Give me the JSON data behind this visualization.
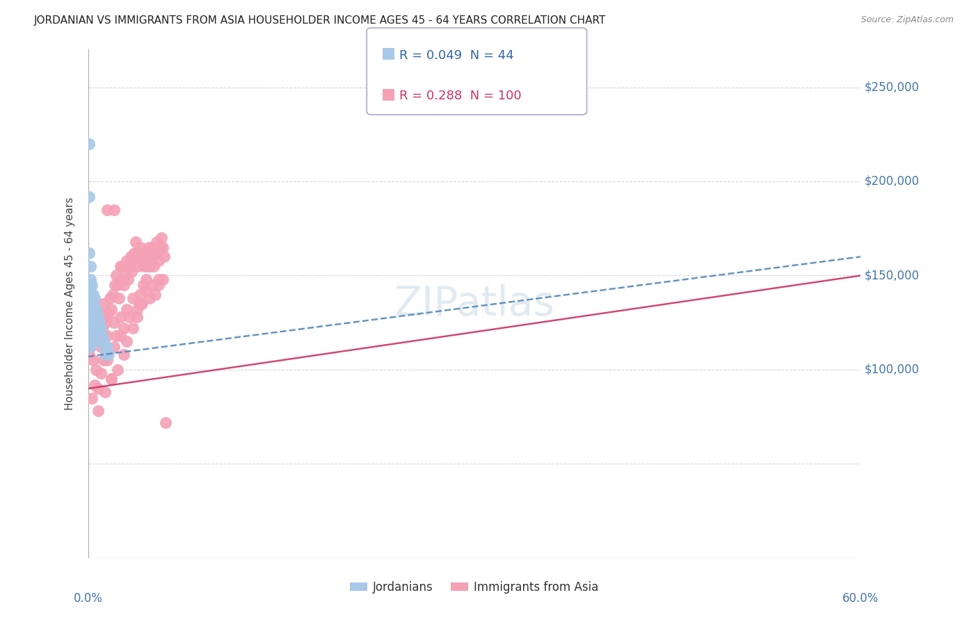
{
  "title": "JORDANIAN VS IMMIGRANTS FROM ASIA HOUSEHOLDER INCOME AGES 45 - 64 YEARS CORRELATION CHART",
  "source": "Source: ZipAtlas.com",
  "ylabel": "Householder Income Ages 45 - 64 years",
  "xlim": [
    0.0,
    0.6
  ],
  "ylim": [
    0,
    270000
  ],
  "legend_R_jordanian": "0.049",
  "legend_N_jordanian": "44",
  "legend_R_asian": "0.288",
  "legend_N_asian": "100",
  "blue_color": "#a8c8e8",
  "pink_color": "#f4a0b5",
  "blue_line_color": "#5588bb",
  "pink_line_color": "#cc3366",
  "jordanian_x": [
    0.001,
    0.001,
    0.001,
    0.001,
    0.001,
    0.002,
    0.002,
    0.002,
    0.002,
    0.002,
    0.002,
    0.002,
    0.002,
    0.002,
    0.003,
    0.003,
    0.003,
    0.003,
    0.003,
    0.003,
    0.004,
    0.004,
    0.004,
    0.004,
    0.005,
    0.005,
    0.005,
    0.005,
    0.006,
    0.006,
    0.006,
    0.007,
    0.007,
    0.007,
    0.008,
    0.008,
    0.009,
    0.01,
    0.011,
    0.012,
    0.013,
    0.014,
    0.015,
    0.016
  ],
  "jordanian_y": [
    220000,
    192000,
    162000,
    145000,
    125000,
    155000,
    148000,
    143000,
    138000,
    132000,
    128000,
    123000,
    118000,
    112000,
    145000,
    140000,
    135000,
    128000,
    122000,
    115000,
    140000,
    135000,
    128000,
    120000,
    138000,
    132000,
    125000,
    118000,
    132000,
    125000,
    118000,
    130000,
    122000,
    115000,
    128000,
    120000,
    125000,
    122000,
    118000,
    115000,
    112000,
    108000,
    112000,
    108000
  ],
  "asian_x": [
    0.001,
    0.002,
    0.003,
    0.004,
    0.005,
    0.006,
    0.007,
    0.008,
    0.009,
    0.01,
    0.011,
    0.012,
    0.013,
    0.014,
    0.015,
    0.016,
    0.017,
    0.018,
    0.019,
    0.02,
    0.021,
    0.022,
    0.023,
    0.024,
    0.025,
    0.026,
    0.027,
    0.028,
    0.029,
    0.03,
    0.031,
    0.032,
    0.033,
    0.034,
    0.035,
    0.036,
    0.037,
    0.038,
    0.039,
    0.04,
    0.041,
    0.042,
    0.043,
    0.044,
    0.045,
    0.046,
    0.047,
    0.048,
    0.049,
    0.05,
    0.051,
    0.052,
    0.053,
    0.054,
    0.055,
    0.056,
    0.057,
    0.058,
    0.059,
    0.06,
    0.008,
    0.01,
    0.012,
    0.015,
    0.018,
    0.02,
    0.022,
    0.025,
    0.028,
    0.03,
    0.032,
    0.035,
    0.038,
    0.04,
    0.042,
    0.045,
    0.048,
    0.05,
    0.052,
    0.055,
    0.003,
    0.005,
    0.008,
    0.01,
    0.013,
    0.015,
    0.018,
    0.02,
    0.023,
    0.025,
    0.028,
    0.03,
    0.035,
    0.038,
    0.04,
    0.043,
    0.045,
    0.048,
    0.055,
    0.058
  ],
  "asian_y": [
    108000,
    112000,
    118000,
    105000,
    120000,
    100000,
    115000,
    125000,
    118000,
    130000,
    122000,
    135000,
    128000,
    125000,
    185000,
    130000,
    138000,
    132000,
    140000,
    185000,
    145000,
    150000,
    145000,
    138000,
    155000,
    148000,
    155000,
    145000,
    150000,
    158000,
    148000,
    155000,
    160000,
    152000,
    158000,
    162000,
    168000,
    162000,
    155000,
    158000,
    165000,
    162000,
    158000,
    155000,
    162000,
    155000,
    165000,
    160000,
    158000,
    165000,
    155000,
    162000,
    168000,
    162000,
    158000,
    165000,
    170000,
    165000,
    160000,
    72000,
    90000,
    112000,
    105000,
    118000,
    95000,
    125000,
    118000,
    128000,
    122000,
    132000,
    128000,
    138000,
    132000,
    140000,
    135000,
    142000,
    138000,
    145000,
    140000,
    148000,
    85000,
    92000,
    78000,
    98000,
    88000,
    105000,
    95000,
    112000,
    100000,
    118000,
    108000,
    115000,
    122000,
    128000,
    135000,
    145000,
    148000,
    155000,
    145000,
    148000
  ]
}
